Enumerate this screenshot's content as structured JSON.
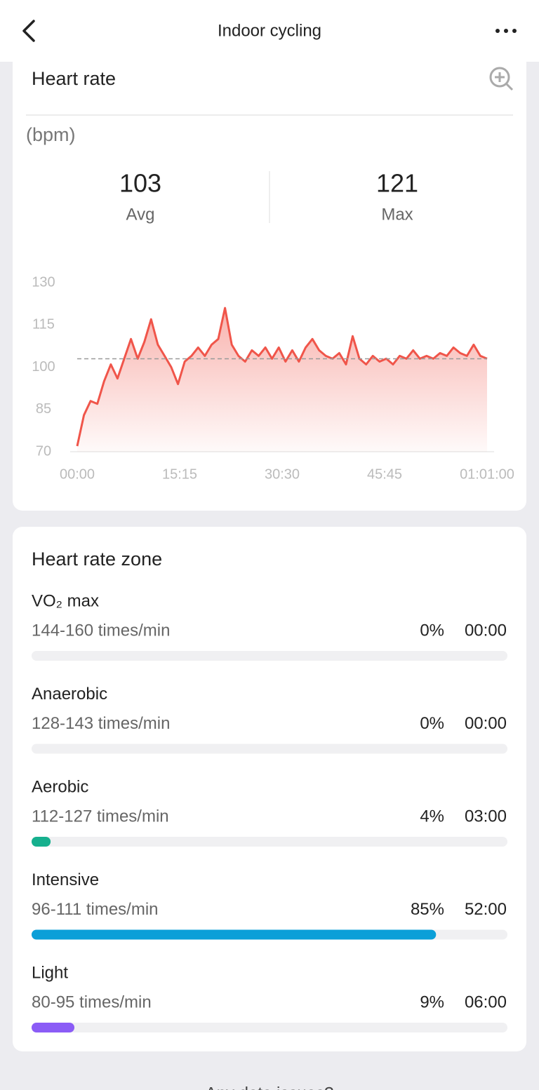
{
  "top_bar": {
    "title": "Indoor cycling"
  },
  "heart_rate": {
    "title": "Heart rate",
    "unit": "(bpm)",
    "stats": [
      {
        "value": 103,
        "label": "Avg"
      },
      {
        "value": 121,
        "label": "Max"
      }
    ],
    "chart_data": {
      "type": "line",
      "x": [
        0,
        1,
        2,
        3,
        4,
        5,
        6,
        7,
        8,
        9,
        10,
        11,
        12,
        13,
        14,
        15,
        16,
        17,
        18,
        19,
        20,
        21,
        22,
        23,
        24,
        25,
        26,
        27,
        28,
        29,
        30,
        31,
        32,
        33,
        34,
        35,
        36,
        37,
        38,
        39,
        40,
        41,
        42,
        43,
        44,
        45,
        46,
        47,
        48,
        49,
        50,
        51,
        52,
        53,
        54,
        55,
        56,
        57,
        58,
        59,
        60,
        61
      ],
      "series": [
        {
          "color": "#f0554a",
          "values": [
            72,
            83,
            88,
            87,
            95,
            101,
            96,
            103,
            110,
            103,
            109,
            117,
            108,
            104,
            100,
            94,
            102,
            104,
            107,
            104,
            108,
            110,
            121,
            108,
            104,
            102,
            106,
            104,
            107,
            103,
            107,
            102,
            106,
            102,
            107,
            110,
            106,
            104,
            103,
            105,
            101,
            111,
            103,
            101,
            104,
            102,
            103,
            101,
            104,
            103,
            106,
            103,
            104,
            103,
            105,
            104,
            107,
            105,
            104,
            108,
            104,
            103
          ]
        }
      ],
      "xlim": [
        0,
        61
      ],
      "xticks": [
        {
          "value": 0,
          "label": "00:00"
        },
        {
          "value": 15.25,
          "label": "15:15"
        },
        {
          "value": 30.5,
          "label": "30:30"
        },
        {
          "value": 45.75,
          "label": "45:45"
        },
        {
          "value": 61,
          "label": "01:01:00"
        }
      ],
      "ylim": [
        70,
        130
      ],
      "yticks": [
        70,
        85,
        100,
        115,
        130
      ]
    }
  },
  "zones": {
    "title": "Heart rate zone",
    "items": [
      {
        "name": "VO₂ max",
        "range": "144-160 times/min",
        "percent": 0,
        "percent_label": "0%",
        "time": "00:00"
      },
      {
        "name": "Anaerobic",
        "range": "128-143 times/min",
        "percent": 0,
        "percent_label": "0%",
        "time": "00:00"
      },
      {
        "name": "Aerobic",
        "range": "112-127 times/min",
        "percent": 4,
        "percent_label": "4%",
        "time": "03:00",
        "color": "#16b08e"
      },
      {
        "name": "Intensive",
        "range": "96-111 times/min",
        "percent": 85,
        "percent_label": "85%",
        "time": "52:00",
        "color": "#0b9fd8"
      },
      {
        "name": "Light",
        "range": "80-95 times/min",
        "percent": 9,
        "percent_label": "9%",
        "time": "06:00",
        "color": "#8b5cf6"
      }
    ]
  },
  "footer": {
    "text": "Any data issues?"
  }
}
